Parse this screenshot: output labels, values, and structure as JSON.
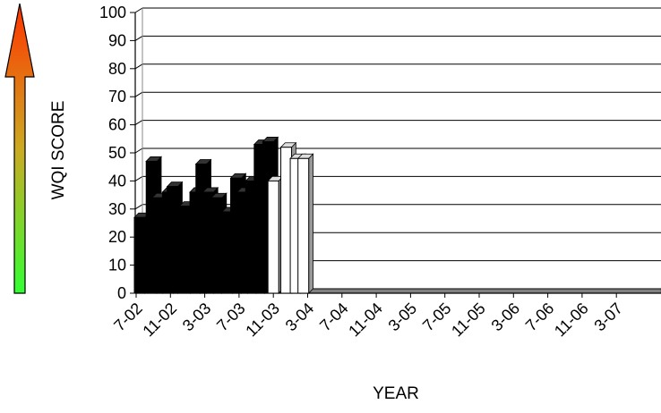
{
  "chart_data": {
    "type": "bar",
    "xlabel": "YEAR",
    "ylabel": "WQI SCORE",
    "ylim": [
      0,
      100
    ],
    "yticks": [
      0,
      10,
      20,
      30,
      40,
      50,
      60,
      70,
      80,
      90,
      100
    ],
    "xtick_labels": [
      "7-02",
      "11-02",
      "3-03",
      "7-03",
      "11-03",
      "3-04",
      "7-04",
      "11-04",
      "3-05",
      "7-05",
      "11-05",
      "3-06",
      "7-06",
      "11-06",
      "3-07"
    ],
    "grid": "horizontal",
    "style": "3d",
    "series": [
      {
        "color": "#000000",
        "points": [
          {
            "x": 7.02,
            "y": 27
          },
          {
            "x": 8.4,
            "y": 47
          },
          {
            "x": 9.1,
            "y": 34
          },
          {
            "x": 10.3,
            "y": 36
          },
          {
            "x": 10.85,
            "y": 38
          },
          {
            "x": 12.3,
            "y": 31
          },
          {
            "x": 13.5,
            "y": 36
          },
          {
            "x": 14.2,
            "y": 46
          },
          {
            "x": 15.0,
            "y": 36
          },
          {
            "x": 16.0,
            "y": 34
          },
          {
            "x": 17.25,
            "y": 29
          },
          {
            "x": 18.25,
            "y": 41
          },
          {
            "x": 19.0,
            "y": 36
          },
          {
            "x": 20.0,
            "y": 40
          },
          {
            "x": 21.0,
            "y": 53
          },
          {
            "x": 22.0,
            "y": 54
          }
        ]
      },
      {
        "color": "#ffffff",
        "points": [
          {
            "x": 22.6,
            "y": 40
          },
          {
            "x": 24.1,
            "y": 52
          },
          {
            "x": 25.2,
            "y": 48
          },
          {
            "x": 26.1,
            "y": 48
          }
        ]
      }
    ],
    "gradient_arrow": {
      "top_color": "#ff3300",
      "middle_color": "#ccaa22",
      "bottom_color": "#33ff33"
    }
  }
}
